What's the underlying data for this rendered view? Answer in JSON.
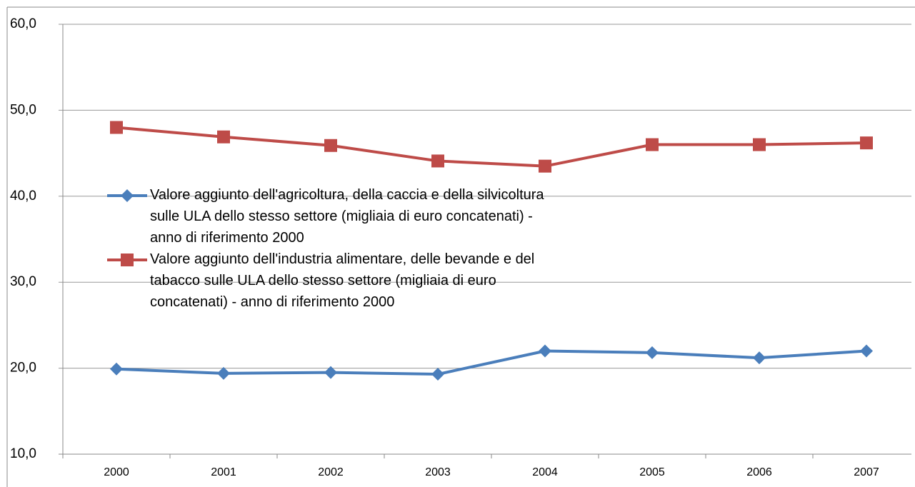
{
  "chart_data": {
    "type": "line",
    "categories": [
      "2000",
      "2001",
      "2002",
      "2003",
      "2004",
      "2005",
      "2006",
      "2007"
    ],
    "series": [
      {
        "name": "Valore aggiunto dell'agricoltura, della caccia e della silvicoltura sulle ULA dello stesso settore (migliaia di euro concatenati) - anno di riferimento 2000",
        "color": "#4a7ebb",
        "marker": "diamond",
        "values": [
          19.9,
          19.4,
          19.5,
          19.3,
          22.0,
          21.8,
          21.2,
          22.0
        ]
      },
      {
        "name": "Valore aggiunto dell'industria alimentare, delle bevande e del tabacco sulle ULA dello stesso settore (migliaia di euro concatenati) - anno di riferimento 2000",
        "color": "#be4b48",
        "marker": "square",
        "values": [
          48.0,
          46.9,
          45.9,
          44.1,
          43.5,
          46.0,
          46.0,
          46.2
        ]
      }
    ],
    "ylim": [
      10,
      60
    ],
    "yticks": [
      {
        "value": 10,
        "label": "10,0"
      },
      {
        "value": 20,
        "label": "20,0"
      },
      {
        "value": 30,
        "label": "30,0"
      },
      {
        "value": 40,
        "label": "40,0"
      },
      {
        "value": 50,
        "label": "50,0"
      },
      {
        "value": 60,
        "label": "60,0"
      }
    ],
    "grid": true
  }
}
